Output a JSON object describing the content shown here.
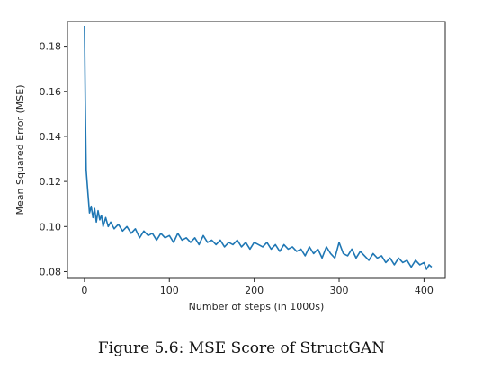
{
  "figure": {
    "caption": "Figure 5.6: MSE Score of StructGAN"
  },
  "chart_data": {
    "type": "line",
    "title": "",
    "xlabel": "Number of steps (in 1000s)",
    "ylabel": "Mean Squared Error (MSE)",
    "xlim": [
      -20,
      425
    ],
    "ylim": [
      0.077,
      0.191
    ],
    "xticks": [
      0,
      100,
      200,
      300,
      400
    ],
    "xtick_labels": [
      "0",
      "100",
      "200",
      "300",
      "400"
    ],
    "yticks": [
      0.08,
      0.1,
      0.12,
      0.14,
      0.16,
      0.18
    ],
    "ytick_labels": [
      "0.08",
      "0.10",
      "0.12",
      "0.14",
      "0.16",
      "0.18"
    ],
    "grid": false,
    "series": [
      {
        "color": "#1f77b4",
        "x": [
          0,
          1,
          2,
          4,
          6,
          8,
          10,
          12,
          14,
          16,
          18,
          20,
          22,
          25,
          28,
          31,
          35,
          40,
          45,
          50,
          55,
          60,
          65,
          70,
          75,
          80,
          85,
          90,
          95,
          100,
          105,
          110,
          115,
          120,
          125,
          130,
          135,
          140,
          145,
          150,
          155,
          160,
          165,
          170,
          175,
          180,
          185,
          190,
          195,
          200,
          205,
          210,
          215,
          220,
          225,
          230,
          235,
          240,
          245,
          250,
          255,
          260,
          265,
          270,
          275,
          280,
          285,
          290,
          295,
          300,
          305,
          310,
          315,
          320,
          325,
          330,
          335,
          340,
          345,
          350,
          355,
          360,
          365,
          370,
          375,
          380,
          385,
          390,
          395,
          400,
          403,
          406,
          409
        ],
        "y": [
          0.189,
          0.155,
          0.125,
          0.115,
          0.106,
          0.109,
          0.104,
          0.108,
          0.102,
          0.107,
          0.103,
          0.105,
          0.1,
          0.104,
          0.1,
          0.102,
          0.099,
          0.101,
          0.098,
          0.1,
          0.097,
          0.099,
          0.095,
          0.098,
          0.096,
          0.097,
          0.094,
          0.097,
          0.095,
          0.096,
          0.093,
          0.097,
          0.094,
          0.095,
          0.093,
          0.095,
          0.092,
          0.096,
          0.093,
          0.094,
          0.092,
          0.094,
          0.091,
          0.093,
          0.092,
          0.094,
          0.091,
          0.093,
          0.09,
          0.093,
          0.092,
          0.091,
          0.093,
          0.09,
          0.092,
          0.089,
          0.092,
          0.09,
          0.091,
          0.089,
          0.09,
          0.087,
          0.091,
          0.088,
          0.09,
          0.086,
          0.091,
          0.088,
          0.086,
          0.093,
          0.088,
          0.087,
          0.09,
          0.086,
          0.089,
          0.087,
          0.085,
          0.088,
          0.086,
          0.087,
          0.084,
          0.086,
          0.083,
          0.086,
          0.084,
          0.085,
          0.082,
          0.085,
          0.083,
          0.084,
          0.081,
          0.083,
          0.082
        ]
      }
    ]
  }
}
